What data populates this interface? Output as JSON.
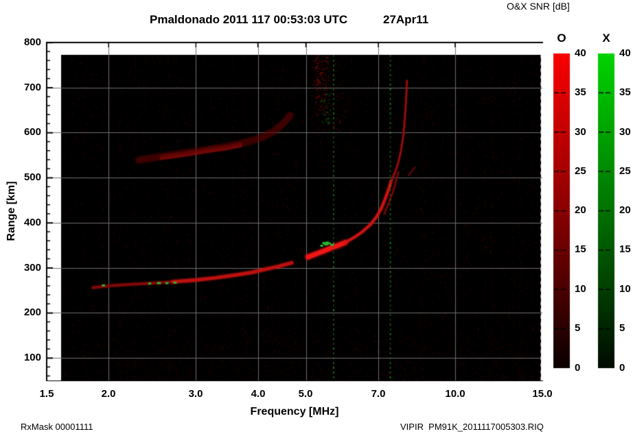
{
  "header": {
    "title": "Pmaldonado 2011 117 00:53:03 UTC",
    "date": "27Apr11",
    "colorbar_title": "O&X SNR [dB]"
  },
  "footer": {
    "left": "RxMask 00001111",
    "right": "VIPIR  PM91K_2011117005303.RIQ"
  },
  "axes": {
    "x": {
      "label": "Frequency [MHz]",
      "scale": "log",
      "min": 1.5,
      "max": 15.0,
      "ticks": [
        "1.5",
        "2.0",
        "3.0",
        "4.0",
        "5.0",
        "7.0",
        "10.0",
        "15.0"
      ],
      "tick_values": [
        1.5,
        2.0,
        3.0,
        4.0,
        5.0,
        7.0,
        10.0,
        15.0
      ]
    },
    "y": {
      "label": "Range [km]",
      "min": 50,
      "max": 800,
      "ticks": [
        "800",
        "700",
        "600",
        "500",
        "400",
        "300",
        "200",
        "100"
      ],
      "tick_values": [
        800,
        700,
        600,
        500,
        400,
        300,
        200,
        100
      ],
      "minor_step": 20
    }
  },
  "colorbars": {
    "o": {
      "header": "O",
      "top_color": "#fa0000",
      "mid_color": "#8a0000",
      "bottom_color": "#0a0000",
      "ticks": [
        "40",
        "35",
        "30",
        "25",
        "20",
        "15",
        "10",
        "5",
        "0"
      ]
    },
    "x": {
      "header": "X",
      "top_color": "#00d400",
      "mid_color": "#007200",
      "bottom_color": "#000a00",
      "ticks": [
        "40",
        "35",
        "30",
        "25",
        "20",
        "15",
        "10",
        "5",
        "0"
      ]
    },
    "units": "dB",
    "range": [
      0,
      40
    ]
  },
  "chart_data": {
    "type": "heatmap",
    "title": "Pmaldonado 2011 117 00:53:03 UTC 27Apr11",
    "xlabel": "Frequency [MHz]",
    "ylabel": "Range [km]",
    "xscale": "log",
    "xlim": [
      1.5,
      15.0
    ],
    "ylim": [
      46,
      800
    ],
    "grid": true,
    "legend": "O=red SNR 0-40 dB, X=green SNR 0-40 dB",
    "background": "#000000",
    "grid_color": "#6f6f6f",
    "traces": [
      {
        "name": "E-F1-trace-dim",
        "color": "#8a0909",
        "alpha": 0.9,
        "width": 4,
        "points": [
          [
            1.86,
            256
          ],
          [
            2.0,
            260
          ],
          [
            2.2,
            263
          ],
          [
            2.45,
            266
          ],
          [
            2.7,
            269
          ]
        ]
      },
      {
        "name": "E-F1-trace",
        "color": "#c41111",
        "alpha": 0.95,
        "width": 5,
        "points": [
          [
            2.7,
            269
          ],
          [
            3.0,
            273
          ],
          [
            3.3,
            278
          ],
          [
            3.6,
            284
          ],
          [
            3.9,
            290
          ],
          [
            4.15,
            297
          ],
          [
            4.4,
            303
          ],
          [
            4.68,
            311
          ]
        ]
      },
      {
        "name": "F-bright-segment",
        "color": "#ee1515",
        "alpha": 1,
        "width": 7,
        "points": [
          [
            5.05,
            324
          ],
          [
            5.25,
            331
          ],
          [
            5.45,
            338
          ],
          [
            5.65,
            345
          ],
          [
            5.85,
            351
          ],
          [
            6.0,
            356
          ]
        ]
      },
      {
        "name": "F-cusp",
        "color": "#d41313",
        "alpha": 0.95,
        "width": 4,
        "points": [
          [
            6.0,
            356
          ],
          [
            6.25,
            367
          ],
          [
            6.5,
            380
          ],
          [
            6.75,
            396
          ],
          [
            6.95,
            414
          ],
          [
            7.1,
            432
          ],
          [
            7.22,
            452
          ],
          [
            7.33,
            472
          ],
          [
            7.43,
            492
          ]
        ]
      },
      {
        "name": "F-asymptote",
        "color": "#a50d0d",
        "alpha": 0.9,
        "width": 2.6,
        "points": [
          [
            7.43,
            492
          ],
          [
            7.55,
            510
          ],
          [
            7.65,
            527
          ],
          [
            7.73,
            546
          ],
          [
            7.8,
            568
          ],
          [
            7.86,
            592
          ],
          [
            7.9,
            618
          ],
          [
            7.93,
            642
          ],
          [
            7.96,
            668
          ],
          [
            7.98,
            692
          ],
          [
            8.0,
            715
          ]
        ]
      },
      {
        "name": "F-x-mode-strand",
        "color": "#8d0a0a",
        "alpha": 0.75,
        "width": 2.5,
        "points": [
          [
            7.2,
            420
          ],
          [
            7.35,
            444
          ],
          [
            7.5,
            470
          ],
          [
            7.6,
            492
          ],
          [
            7.68,
            512
          ]
        ]
      },
      {
        "name": "F-fragment",
        "color": "#7c0808",
        "alpha": 0.7,
        "width": 2,
        "points": [
          [
            8.05,
            505
          ],
          [
            8.3,
            523
          ]
        ]
      },
      {
        "name": "second-hop-dim",
        "color": "#5f0505",
        "alpha": 0.75,
        "width": 10,
        "fuzz": 3,
        "points": [
          [
            2.3,
            537
          ],
          [
            2.6,
            546
          ],
          [
            2.9,
            554
          ],
          [
            3.2,
            561
          ],
          [
            3.5,
            568
          ],
          [
            3.8,
            577
          ],
          [
            4.05,
            586
          ],
          [
            4.3,
            600
          ],
          [
            4.5,
            618
          ],
          [
            4.65,
            636
          ]
        ]
      },
      {
        "name": "second-hop-core",
        "color": "#a30c0c",
        "alpha": 0.8,
        "width": 4,
        "fuzz": 2,
        "points": [
          [
            2.55,
            545
          ],
          [
            2.85,
            552
          ],
          [
            3.15,
            560
          ],
          [
            3.45,
            566
          ],
          [
            3.7,
            573
          ]
        ]
      }
    ],
    "green_marks": [
      [
        1.95,
        261
      ],
      [
        2.42,
        265
      ],
      [
        2.52,
        266
      ],
      [
        2.62,
        266
      ],
      [
        2.72,
        267
      ],
      [
        5.38,
        349
      ],
      [
        5.47,
        352
      ],
      [
        5.56,
        354
      ],
      [
        5.64,
        351
      ],
      [
        5.52,
        356
      ],
      [
        5.43,
        355
      ]
    ],
    "green_mark_color": "#2fb52f",
    "patches": [
      {
        "f": [
          5.1,
          6.0
        ],
        "R": [
          600,
          780
        ],
        "n": 210,
        "rgb": [
          150,
          10,
          10
        ],
        "a": [
          0.1,
          0.38
        ]
      },
      {
        "f": [
          5.18,
          5.55
        ],
        "R": [
          640,
          772
        ],
        "n": 170,
        "rgb": [
          190,
          16,
          16
        ],
        "a": [
          0.2,
          0.55
        ]
      },
      {
        "f": [
          5.38,
          5.62
        ],
        "R": [
          620,
          700
        ],
        "n": 45,
        "rgb": [
          30,
          150,
          30
        ],
        "a": [
          0.25,
          0.6
        ]
      }
    ],
    "interference_green_lines_mhz": [
      5.67,
      7.38
    ],
    "interference_red_stripes_mhz": [
      1.78,
      1.95,
      2.1,
      2.35,
      2.62,
      2.9,
      3.2,
      3.55,
      3.8,
      4.1,
      4.38,
      4.6,
      5.0,
      6.15,
      6.6,
      8.5,
      9.2,
      10.5,
      11.2,
      11.8,
      12.4,
      13.1,
      13.6,
      14.3
    ],
    "right_edge_dashed_line": true
  }
}
